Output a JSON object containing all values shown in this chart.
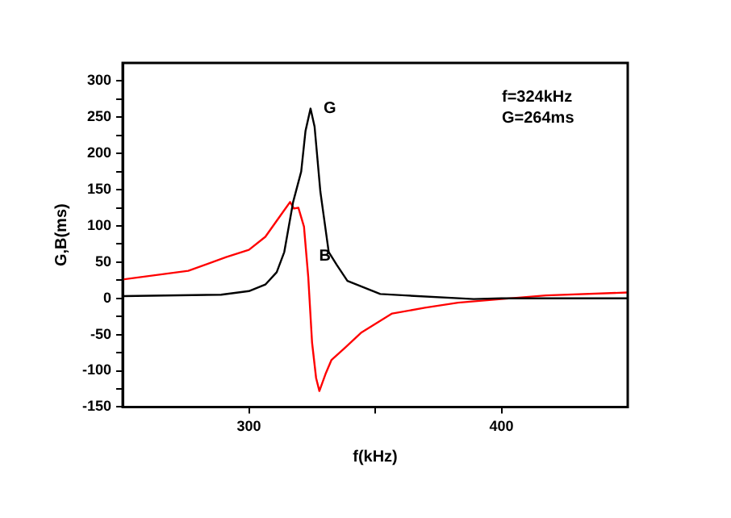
{
  "chart_data": {
    "type": "line",
    "xlabel": "f(kHz)",
    "ylabel": "G,B(ms)",
    "xlim": [
      250,
      450
    ],
    "xticks": [
      300,
      {
        "value": 350,
        "label": null
      },
      400
    ],
    "ylim": [
      -150,
      325
    ],
    "yticks": [
      -150,
      {
        "value": -125,
        "label": null
      },
      -100,
      {
        "value": -75,
        "label": null
      },
      -50,
      {
        "value": -25,
        "label": null
      },
      0,
      {
        "value": 25,
        "label": null
      },
      50,
      {
        "value": 75,
        "label": null
      },
      100,
      {
        "value": 125,
        "label": null
      },
      150,
      {
        "value": 175,
        "label": null
      },
      200,
      {
        "value": 225,
        "label": null
      },
      250,
      {
        "value": 275,
        "label": null
      },
      300
    ],
    "grid": false,
    "legend": false,
    "marker": "none",
    "line_style": "solid",
    "series": [
      {
        "color": "#000000",
        "x": [
          250,
          289,
          300,
          306.5,
          311,
          314,
          317.5,
          320.7,
          322.4,
          324.4,
          326,
          328.3,
          331.6,
          334.8,
          339,
          352,
          362,
          389,
          400,
          450
        ],
        "values": [
          3,
          5,
          10,
          19,
          36,
          64,
          133,
          175,
          231,
          262,
          237,
          147,
          64,
          46,
          24,
          6,
          4,
          -1,
          0,
          0
        ]
      },
      {
        "color": "#ff0000",
        "x": [
          250,
          276,
          291,
          300,
          306.5,
          312,
          316.3,
          317.8,
          319.6,
          321.8,
          323.5,
          325,
          326.6,
          327.9,
          330.5,
          332.7,
          338.1,
          344.6,
          356.7,
          369.7,
          382.8,
          400,
          417.6,
          450
        ],
        "values": [
          26,
          38,
          57,
          67,
          85,
          112,
          133,
          124,
          125,
          99,
          29,
          -61,
          -110,
          -128,
          -103,
          -85,
          -68,
          -47,
          -21,
          -13,
          -6,
          -1,
          4,
          8
        ]
      }
    ],
    "annotations": [
      {
        "text": "G",
        "x": 324.4,
        "y": 262
      },
      {
        "text": "B",
        "x": 322.7,
        "y": 58
      },
      "f=324kHz",
      "G=264ms"
    ]
  }
}
